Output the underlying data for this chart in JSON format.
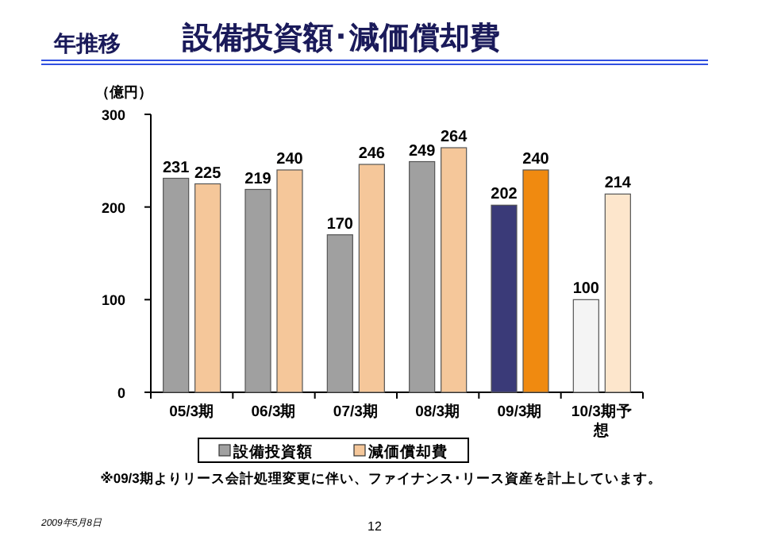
{
  "chart_data": {
    "type": "bar",
    "title": "設備投資額･減価償却費",
    "subtitle": "年推移",
    "ylabel": "（億円）",
    "categories": [
      "05/3期",
      "06/3期",
      "07/3期",
      "08/3期",
      "09/3期",
      "10/3期予想"
    ],
    "series": [
      {
        "name": "設備投資額",
        "color": "#a0a0a0",
        "colors": [
          "#a0a0a0",
          "#a0a0a0",
          "#a0a0a0",
          "#a0a0a0",
          "#3a3a78",
          "#f4f4f4"
        ],
        "values": [
          231,
          219,
          170,
          249,
          202,
          100
        ]
      },
      {
        "name": "減価償却費",
        "color": "#f5c79a",
        "colors": [
          "#f5c79a",
          "#f5c79a",
          "#f5c79a",
          "#f5c79a",
          "#f08a10",
          "#fde6cc"
        ],
        "values": [
          225,
          240,
          246,
          264,
          240,
          214
        ]
      }
    ],
    "ylim": [
      0,
      300
    ],
    "yticks": [
      0,
      100,
      200,
      300
    ],
    "data_labels": true,
    "legend": "bottom",
    "annotations": [
      "※09/3期よりリース会計処理変更に伴い、ファイナンス･リース資産を計上しています。",
      "2009年5月8日",
      "12"
    ]
  }
}
